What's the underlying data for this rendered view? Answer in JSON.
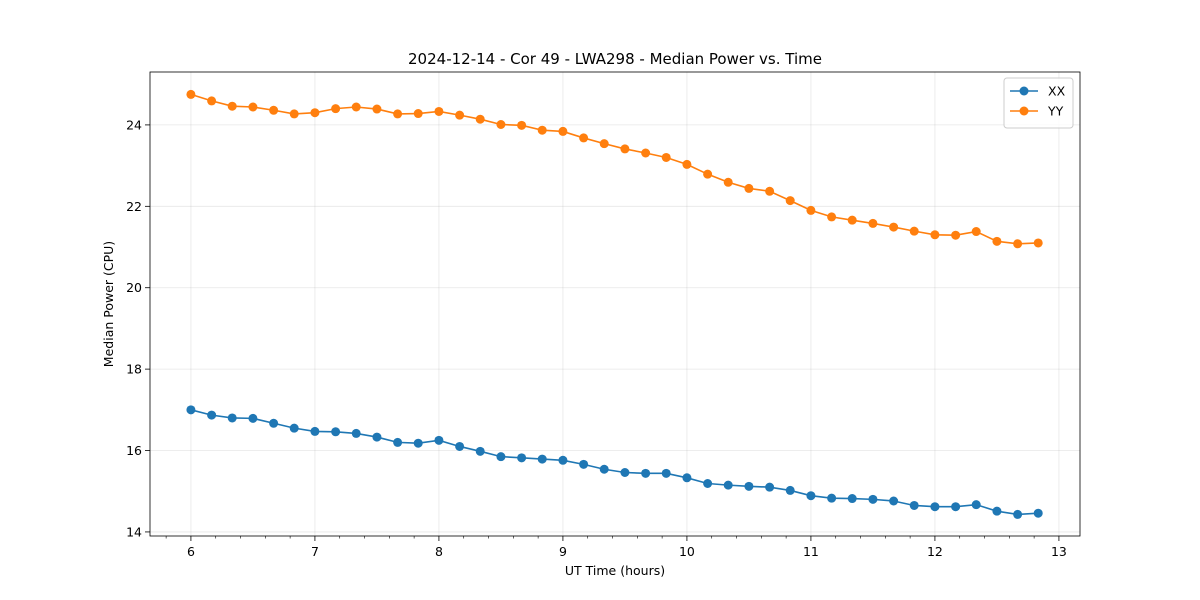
{
  "chart_data": {
    "type": "line",
    "title": "2024-12-14 - Cor 49 - LWA298 - Median Power vs. Time",
    "xlabel": "UT Time (hours)",
    "ylabel": "Median Power (CPU)",
    "xlim": [
      5.67,
      13.17
    ],
    "ylim": [
      13.9,
      25.3
    ],
    "xticks": [
      6,
      7,
      8,
      9,
      10,
      11,
      12,
      13
    ],
    "yticks": [
      14,
      16,
      18,
      20,
      22,
      24
    ],
    "grid": true,
    "legend_position": "top-right",
    "x": [
      6.0,
      6.167,
      6.333,
      6.5,
      6.667,
      6.833,
      7.0,
      7.167,
      7.333,
      7.5,
      7.667,
      7.833,
      8.0,
      8.167,
      8.333,
      8.5,
      8.667,
      8.833,
      9.0,
      9.167,
      9.333,
      9.5,
      9.667,
      9.833,
      10.0,
      10.167,
      10.333,
      10.5,
      10.667,
      10.833,
      11.0,
      11.167,
      11.333,
      11.5,
      11.667,
      11.833,
      12.0,
      12.167,
      12.333,
      12.5,
      12.667,
      12.833
    ],
    "series": [
      {
        "name": "XX",
        "color": "#1f77b4",
        "values": [
          17.0,
          16.87,
          16.8,
          16.79,
          16.67,
          16.55,
          16.47,
          16.46,
          16.42,
          16.33,
          16.2,
          16.18,
          16.25,
          16.1,
          15.98,
          15.85,
          15.82,
          15.79,
          15.76,
          15.66,
          15.54,
          15.46,
          15.44,
          15.44,
          15.33,
          15.19,
          15.15,
          15.12,
          15.1,
          15.02,
          14.89,
          14.83,
          14.82,
          14.8,
          14.76,
          14.65,
          14.62,
          14.62,
          14.67,
          14.51,
          14.43,
          14.46
        ]
      },
      {
        "name": "YY",
        "color": "#ff7f0e",
        "values": [
          24.75,
          24.59,
          24.46,
          24.44,
          24.36,
          24.27,
          24.3,
          24.4,
          24.44,
          24.39,
          24.27,
          24.28,
          24.33,
          24.24,
          24.14,
          24.01,
          23.99,
          23.87,
          23.84,
          23.68,
          23.54,
          23.41,
          23.31,
          23.2,
          23.03,
          22.79,
          22.59,
          22.44,
          22.37,
          22.14,
          21.9,
          21.74,
          21.66,
          21.58,
          21.49,
          21.39,
          21.3,
          21.29,
          21.38,
          21.14,
          21.08,
          21.1
        ]
      }
    ]
  }
}
